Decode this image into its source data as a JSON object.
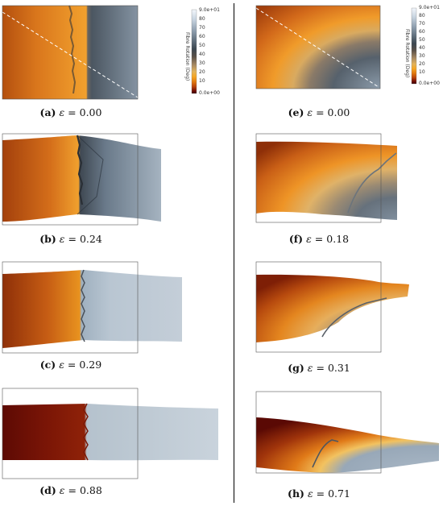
{
  "colorbar": {
    "title": "Fibre Rotation (Deg)",
    "ticks": [
      "9.0e+01",
      "80",
      "70",
      "60",
      "50",
      "40",
      "30",
      "20",
      "10",
      "0.0e+00"
    ],
    "colormap": [
      "#f2f6fb",
      "#c7d3df",
      "#8b9bab",
      "#5c6b78",
      "#3b4650",
      "#5a5048",
      "#a88a63",
      "#e3b35a",
      "#f5a623",
      "#e07a10",
      "#b8420a",
      "#6e0d05",
      "#3a0404"
    ]
  },
  "panels": [
    {
      "label": "(a)",
      "epsilon": "0.00"
    },
    {
      "label": "(b)",
      "epsilon": "0.24"
    },
    {
      "label": "(c)",
      "epsilon": "0.29"
    },
    {
      "label": "(d)",
      "epsilon": "0.88"
    },
    {
      "label": "(e)",
      "epsilon": "0.00"
    },
    {
      "label": "(f)",
      "epsilon": "0.18"
    },
    {
      "label": "(g)",
      "epsilon": "0.31"
    },
    {
      "label": "(h)",
      "epsilon": "0.71"
    }
  ],
  "symbols": {
    "epsilon": "ε",
    "equals": "="
  }
}
